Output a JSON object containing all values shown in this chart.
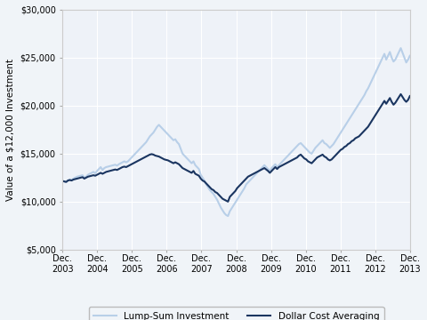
{
  "ylabel": "Value of a $12,000 Investment",
  "background_color": "#f0f4f8",
  "plot_bg_color": "#eef2f8",
  "grid_color": "#ffffff",
  "ylim": [
    5000,
    30000
  ],
  "yticks": [
    5000,
    10000,
    15000,
    20000,
    25000,
    30000
  ],
  "ytick_labels": [
    "$5,000",
    "$10,000",
    "$15,000",
    "$20,000",
    "$25,000",
    "$30,000"
  ],
  "xtick_labels": [
    "2003",
    "2004",
    "2005",
    "2006",
    "2007",
    "2008",
    "2009",
    "2010",
    "2011",
    "2012",
    "2013"
  ],
  "xtick_prefix": "Dec.\n",
  "lump_sum_color": "#b8cfe8",
  "dca_color": "#1a3560",
  "lump_sum_label": "Lump-Sum Investment",
  "dca_label": "Dollar Cost Averaging",
  "lump_sum_linewidth": 1.5,
  "dca_linewidth": 1.5,
  "lump_sum_data": [
    12150,
    12100,
    12050,
    12200,
    12300,
    12250,
    12400,
    12500,
    12600,
    12650,
    12700,
    12750,
    12500,
    12600,
    12800,
    12900,
    13000,
    13100,
    12950,
    13200,
    13400,
    13600,
    13300,
    13500,
    13600,
    13650,
    13700,
    13750,
    13800,
    13850,
    13750,
    13900,
    14000,
    14100,
    14200,
    14100,
    14200,
    14400,
    14600,
    14800,
    15000,
    15200,
    15400,
    15600,
    15800,
    16000,
    16200,
    16500,
    16800,
    17000,
    17200,
    17500,
    17800,
    18000,
    17800,
    17600,
    17400,
    17200,
    17000,
    16800,
    16600,
    16400,
    16500,
    16200,
    16000,
    15500,
    15000,
    14800,
    14600,
    14400,
    14200,
    14000,
    14200,
    13800,
    13600,
    13400,
    12800,
    12500,
    12200,
    11800,
    11500,
    11200,
    11000,
    10800,
    10500,
    10200,
    9800,
    9400,
    9100,
    8800,
    8600,
    8500,
    9000,
    9300,
    9600,
    9900,
    10200,
    10500,
    10800,
    11100,
    11400,
    11800,
    12000,
    12200,
    12400,
    12600,
    12800,
    13000,
    13200,
    13400,
    13600,
    13800,
    13600,
    13400,
    13200,
    13500,
    13700,
    13900,
    13600,
    13800,
    14000,
    14200,
    14400,
    14600,
    14800,
    15000,
    15200,
    15400,
    15600,
    15800,
    16000,
    16100,
    15900,
    15700,
    15500,
    15300,
    15100,
    15000,
    15300,
    15600,
    15800,
    16000,
    16200,
    16400,
    16100,
    16000,
    15800,
    15600,
    15800,
    16000,
    16300,
    16600,
    16900,
    17200,
    17500,
    17800,
    18100,
    18400,
    18700,
    19000,
    19300,
    19600,
    19900,
    20200,
    20500,
    20800,
    21100,
    21500,
    21800,
    22200,
    22600,
    23000,
    23400,
    23800,
    24200,
    24600,
    25000,
    25400,
    24800,
    25200,
    25600,
    25000,
    24600,
    24800,
    25200,
    25600,
    26000,
    25500,
    25000,
    24500,
    24800,
    25200
  ],
  "dca_data": [
    12150,
    12100,
    12050,
    12200,
    12250,
    12200,
    12300,
    12350,
    12400,
    12450,
    12500,
    12550,
    12400,
    12500,
    12600,
    12650,
    12700,
    12750,
    12700,
    12800,
    12900,
    13000,
    12900,
    13000,
    13100,
    13150,
    13200,
    13250,
    13300,
    13350,
    13300,
    13400,
    13500,
    13600,
    13650,
    13600,
    13700,
    13800,
    13900,
    14000,
    14100,
    14200,
    14300,
    14400,
    14500,
    14600,
    14700,
    14800,
    14900,
    14950,
    14900,
    14800,
    14750,
    14700,
    14600,
    14500,
    14400,
    14350,
    14300,
    14200,
    14100,
    14000,
    14100,
    14000,
    13900,
    13700,
    13500,
    13400,
    13300,
    13200,
    13100,
    13000,
    13200,
    12900,
    12800,
    12700,
    12400,
    12200,
    12100,
    11900,
    11700,
    11500,
    11300,
    11200,
    11000,
    10900,
    10700,
    10500,
    10300,
    10200,
    10100,
    10000,
    10500,
    10700,
    10900,
    11100,
    11400,
    11600,
    11800,
    12000,
    12200,
    12400,
    12600,
    12700,
    12800,
    12900,
    13000,
    13100,
    13200,
    13300,
    13400,
    13500,
    13350,
    13200,
    13000,
    13200,
    13400,
    13600,
    13400,
    13600,
    13700,
    13800,
    13900,
    14000,
    14100,
    14200,
    14300,
    14400,
    14500,
    14600,
    14800,
    14900,
    14700,
    14500,
    14400,
    14200,
    14100,
    14000,
    14200,
    14400,
    14600,
    14700,
    14800,
    14900,
    14700,
    14600,
    14400,
    14300,
    14400,
    14600,
    14800,
    15000,
    15200,
    15400,
    15500,
    15700,
    15800,
    16000,
    16100,
    16300,
    16400,
    16600,
    16700,
    16800,
    17000,
    17200,
    17400,
    17600,
    17800,
    18100,
    18400,
    18700,
    19000,
    19300,
    19600,
    19900,
    20200,
    20500,
    20200,
    20500,
    20800,
    20400,
    20100,
    20300,
    20600,
    20900,
    21200,
    20900,
    20600,
    20400,
    20600,
    21000
  ]
}
